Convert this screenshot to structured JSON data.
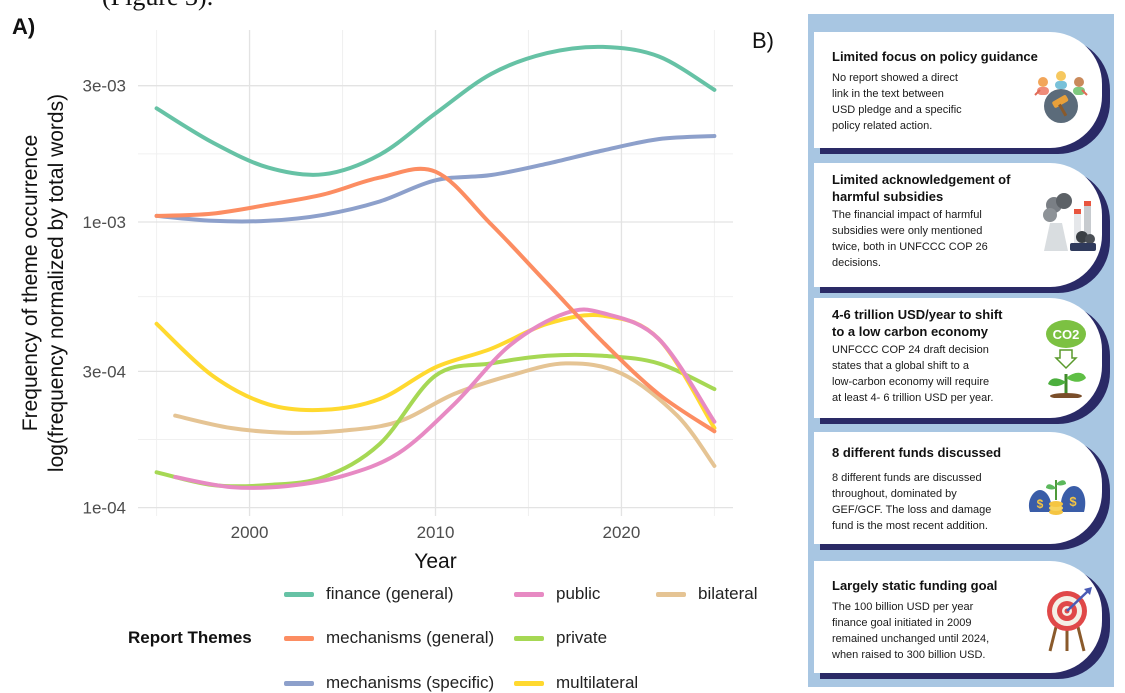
{
  "header_fragment": "(Figure 3).",
  "panel_a": {
    "label": "A)",
    "chart_data": {
      "type": "line",
      "xlabel": "Year",
      "ylabel_line1": "Frequency of theme occurrence",
      "ylabel_line2": "log(frequency normalized by total words)",
      "y_scale": "log",
      "xlim": [
        1994,
        2026
      ],
      "ylim": [
        9.35e-05,
        0.0047
      ],
      "x_ticks": [
        2000,
        2010,
        2020
      ],
      "x_tick_labels": [
        "2000",
        "2010",
        "2020"
      ],
      "y_ticks": [
        0.0001,
        0.0003,
        0.001,
        0.003
      ],
      "y_tick_labels": [
        "1e-04",
        "3e-04",
        "1e-03",
        "3e-03"
      ],
      "grid": true,
      "legend_title": "Report Themes",
      "legend_position": "bottom",
      "series": [
        {
          "name": "finance (general)",
          "color": "#66c2a5",
          "x": [
            1995,
            1998,
            2001,
            2004,
            2007,
            2010,
            2013,
            2016,
            2019,
            2022,
            2025
          ],
          "y": [
            0.0025,
            0.0019,
            0.00155,
            0.00147,
            0.00172,
            0.0024,
            0.0033,
            0.0039,
            0.0041,
            0.0038,
            0.0029
          ]
        },
        {
          "name": "mechanisms (general)",
          "color": "#fc8d62",
          "x": [
            1995,
            1998,
            2001,
            2004,
            2007,
            2010,
            2013,
            2016,
            2019,
            2022,
            2025
          ],
          "y": [
            0.00105,
            0.00107,
            0.00115,
            0.00125,
            0.00143,
            0.0015,
            0.00098,
            0.00061,
            0.00038,
            0.00025,
            0.000185
          ]
        },
        {
          "name": "mechanisms (specific)",
          "color": "#8da0cb",
          "x": [
            1995,
            1998,
            2001,
            2004,
            2007,
            2010,
            2013,
            2016,
            2019,
            2022,
            2025
          ],
          "y": [
            0.00105,
            0.00101,
            0.00101,
            0.00106,
            0.00118,
            0.0014,
            0.00146,
            0.0016,
            0.00178,
            0.00195,
            0.002
          ]
        },
        {
          "name": "public",
          "color": "#e78ac3",
          "x": [
            1996,
            1999,
            2002,
            2005,
            2008,
            2011,
            2014,
            2017,
            2019,
            2022,
            2025
          ],
          "y": [
            0.000128,
            0.000118,
            0.000119,
            0.000129,
            0.000155,
            0.00023,
            0.00037,
            0.00048,
            0.00048,
            0.00039,
            0.0002
          ]
        },
        {
          "name": "private",
          "color": "#a6d854",
          "x": [
            1995,
            1998,
            2001,
            2004,
            2007,
            2010,
            2013,
            2016,
            2019,
            2022,
            2025
          ],
          "y": [
            0.000133,
            0.00012,
            0.00012,
            0.000128,
            0.000167,
            0.00029,
            0.00032,
            0.00034,
            0.00034,
            0.00032,
            0.00026
          ]
        },
        {
          "name": "multilateral",
          "color": "#ffd92f",
          "x": [
            1995,
            1998,
            2001,
            2004,
            2007,
            2010,
            2013,
            2016,
            2019,
            2022,
            2025
          ],
          "y": [
            0.00044,
            0.00029,
            0.00023,
            0.00022,
            0.00024,
            0.00031,
            0.00036,
            0.00044,
            0.00047,
            0.00039,
            0.00019
          ]
        },
        {
          "name": "bilateral",
          "color": "#e5c494",
          "x": [
            1996,
            1999,
            2002,
            2005,
            2008,
            2011,
            2014,
            2017,
            2020,
            2023,
            2025
          ],
          "y": [
            0.00021,
            0.00019,
            0.000183,
            0.000186,
            0.0002,
            0.00025,
            0.00029,
            0.00032,
            0.000295,
            0.00021,
            0.00014
          ]
        }
      ]
    }
  },
  "panel_b": {
    "label": "B)",
    "background_color": "#a8c6e2",
    "cards": [
      {
        "title": "Limited focus on policy guidance",
        "body": [
          "No report showed a direct",
          "link in the text between",
          "USD pledge and a specific",
          "policy related action."
        ],
        "icon": "policy-gavel-people-icon"
      },
      {
        "title": "Limited acknowledgement of harmful subsidies",
        "title_lines": [
          "Limited acknowledgement of",
          "harmful subsidies"
        ],
        "body": [
          "The financial impact of harmful",
          "subsidies were only mentioned",
          "twice, both in UNFCCC COP 26",
          "decisions."
        ],
        "icon": "factory-pollution-icon"
      },
      {
        "title": "4-6 trillion USD/year to shift to a low carbon economy",
        "title_lines": [
          "4-6 trillion USD/year to shift",
          "to a low carbon economy"
        ],
        "body": [
          "UNFCCC COP 24 draft decision",
          "states that a global shift to a",
          "low-carbon economy will require",
          "at least 4- 6 trillion USD per year."
        ],
        "icon": "co2-plant-icon",
        "icon_text": "CO2"
      },
      {
        "title": "8 different funds discussed",
        "body": [
          "8 different funds are discussed",
          "throughout, dominated by",
          "GEF/GCF. The loss and damage",
          "fund is the most recent addition."
        ],
        "icon": "money-bags-icon"
      },
      {
        "title": "Largely static funding goal",
        "body": [
          "The 100 billion USD per year",
          "finance goal initiated in 2009",
          "remained unchanged until 2024,",
          "when raised to 300 billion USD."
        ],
        "icon": "target-arrow-icon"
      }
    ]
  }
}
